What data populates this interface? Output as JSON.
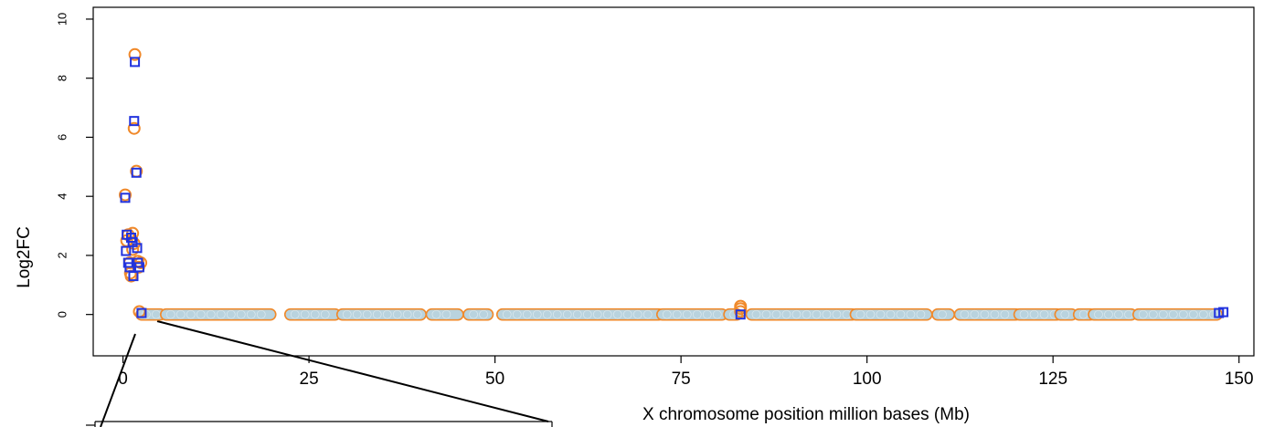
{
  "chart_data": {
    "type": "scatter",
    "xlabel": "X chromosome position million bases (Mb)",
    "ylabel": "Log2FC",
    "xlim": [
      -4,
      152
    ],
    "ylim": [
      -1.4,
      10.4
    ],
    "x_ticks": [
      0,
      25,
      50,
      75,
      100,
      125,
      150
    ],
    "y_ticks": [
      0,
      2,
      4,
      6,
      8,
      10
    ],
    "grid": false,
    "colors": {
      "circle": "#f0892a",
      "square": "#2233dd",
      "fill": "#b9d3de"
    },
    "series": [
      {
        "marker": "circle",
        "x": [
          0.3,
          0.5,
          0.7,
          0.9,
          1.1,
          1.3,
          1.5,
          1.6,
          1.8,
          2.0,
          2.1,
          2.4,
          2.2,
          1.0,
          1.3,
          1.5
        ],
        "y": [
          4.05,
          2.5,
          2.7,
          1.75,
          1.3,
          2.75,
          6.3,
          8.8,
          4.85,
          1.8,
          1.6,
          1.75,
          0.1,
          1.4,
          2.2,
          2.4
        ]
      },
      {
        "marker": "square",
        "x": [
          0.3,
          0.4,
          0.5,
          0.7,
          0.9,
          1.1,
          1.3,
          1.4,
          1.5,
          1.6,
          1.8,
          1.9,
          2.0,
          2.2,
          2.5,
          83.0,
          147.3,
          147.9
        ],
        "y": [
          3.95,
          2.15,
          2.7,
          1.75,
          1.6,
          2.6,
          2.45,
          1.3,
          6.55,
          8.55,
          4.8,
          2.25,
          1.75,
          1.6,
          0.05,
          0.0,
          0.05,
          0.08
        ]
      }
    ],
    "baseline_segments": [
      [
        2.5,
        5.0
      ],
      [
        5.8,
        19.8
      ],
      [
        22.5,
        28.5
      ],
      [
        29.5,
        40.0
      ],
      [
        41.5,
        45.0
      ],
      [
        46.5,
        49.0
      ],
      [
        51.0,
        72.0
      ],
      [
        72.5,
        80.5
      ],
      [
        81.5,
        82.5
      ],
      [
        84.5,
        98.0
      ],
      [
        98.5,
        108.0
      ],
      [
        109.5,
        111.0
      ],
      [
        112.5,
        120.0
      ],
      [
        120.5,
        125.5
      ],
      [
        126.0,
        127.5
      ],
      [
        128.5,
        130.0
      ],
      [
        130.5,
        135.5
      ],
      [
        136.5,
        147.0
      ]
    ],
    "baseline_y": 0.0,
    "highlight": {
      "x": 83.0,
      "y": [
        0.2,
        0.1,
        0.28
      ]
    }
  }
}
